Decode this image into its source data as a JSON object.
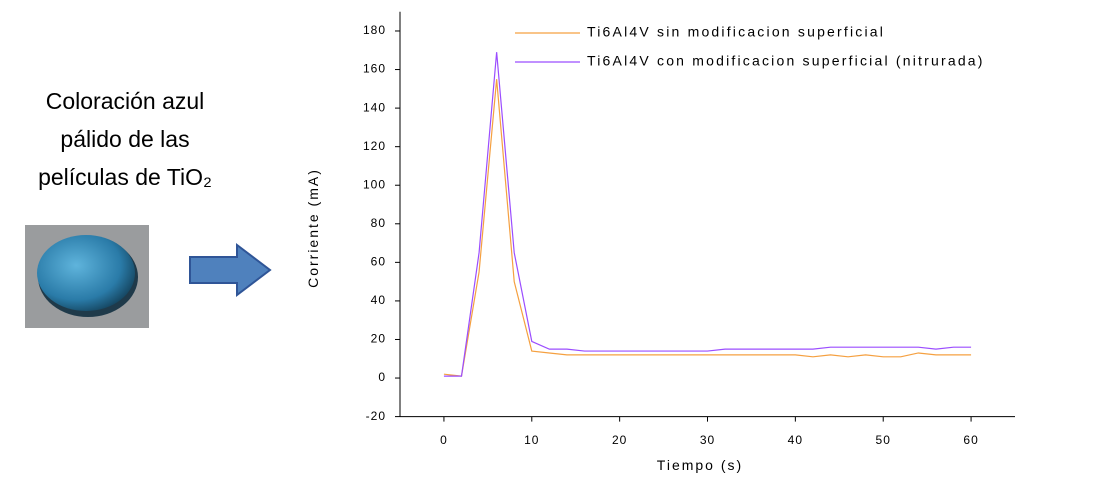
{
  "caption": [
    "Coloración azul",
    "pálido de las",
    "películas de TiO₂"
  ],
  "chart_data": {
    "type": "line",
    "xlabel": "Tiempo (s)",
    "ylabel": "Corriente (mA)",
    "x": [
      0,
      2,
      4,
      6,
      8,
      10,
      12,
      14,
      16,
      18,
      20,
      22,
      24,
      26,
      28,
      30,
      32,
      34,
      36,
      38,
      40,
      42,
      44,
      46,
      48,
      50,
      52,
      54,
      56,
      58,
      60
    ],
    "series": [
      {
        "name": "Ti6Al4V sin modificacion superficial",
        "color": "#f5a040",
        "values": [
          2,
          1,
          55,
          155,
          50,
          14,
          13,
          12,
          12,
          12,
          12,
          12,
          12,
          12,
          12,
          12,
          12,
          12,
          12,
          12,
          12,
          11,
          12,
          11,
          12,
          11,
          11,
          13,
          12,
          12,
          12
        ]
      },
      {
        "name": "Ti6Al4V con modificacion superficial (nitrurada)",
        "color": "#9b4dff",
        "values": [
          1,
          1,
          65,
          169,
          65,
          19,
          15,
          15,
          14,
          14,
          14,
          14,
          14,
          14,
          14,
          14,
          15,
          15,
          15,
          15,
          15,
          15,
          16,
          16,
          16,
          16,
          16,
          16,
          15,
          16,
          16
        ]
      }
    ],
    "xlim": [
      -5,
      65
    ],
    "xticks": [
      0,
      10,
      20,
      30,
      40,
      50,
      60
    ],
    "ylim": [
      -20,
      190
    ],
    "yticks": [
      -20,
      0,
      20,
      40,
      60,
      80,
      100,
      120,
      140,
      160,
      180
    ]
  }
}
